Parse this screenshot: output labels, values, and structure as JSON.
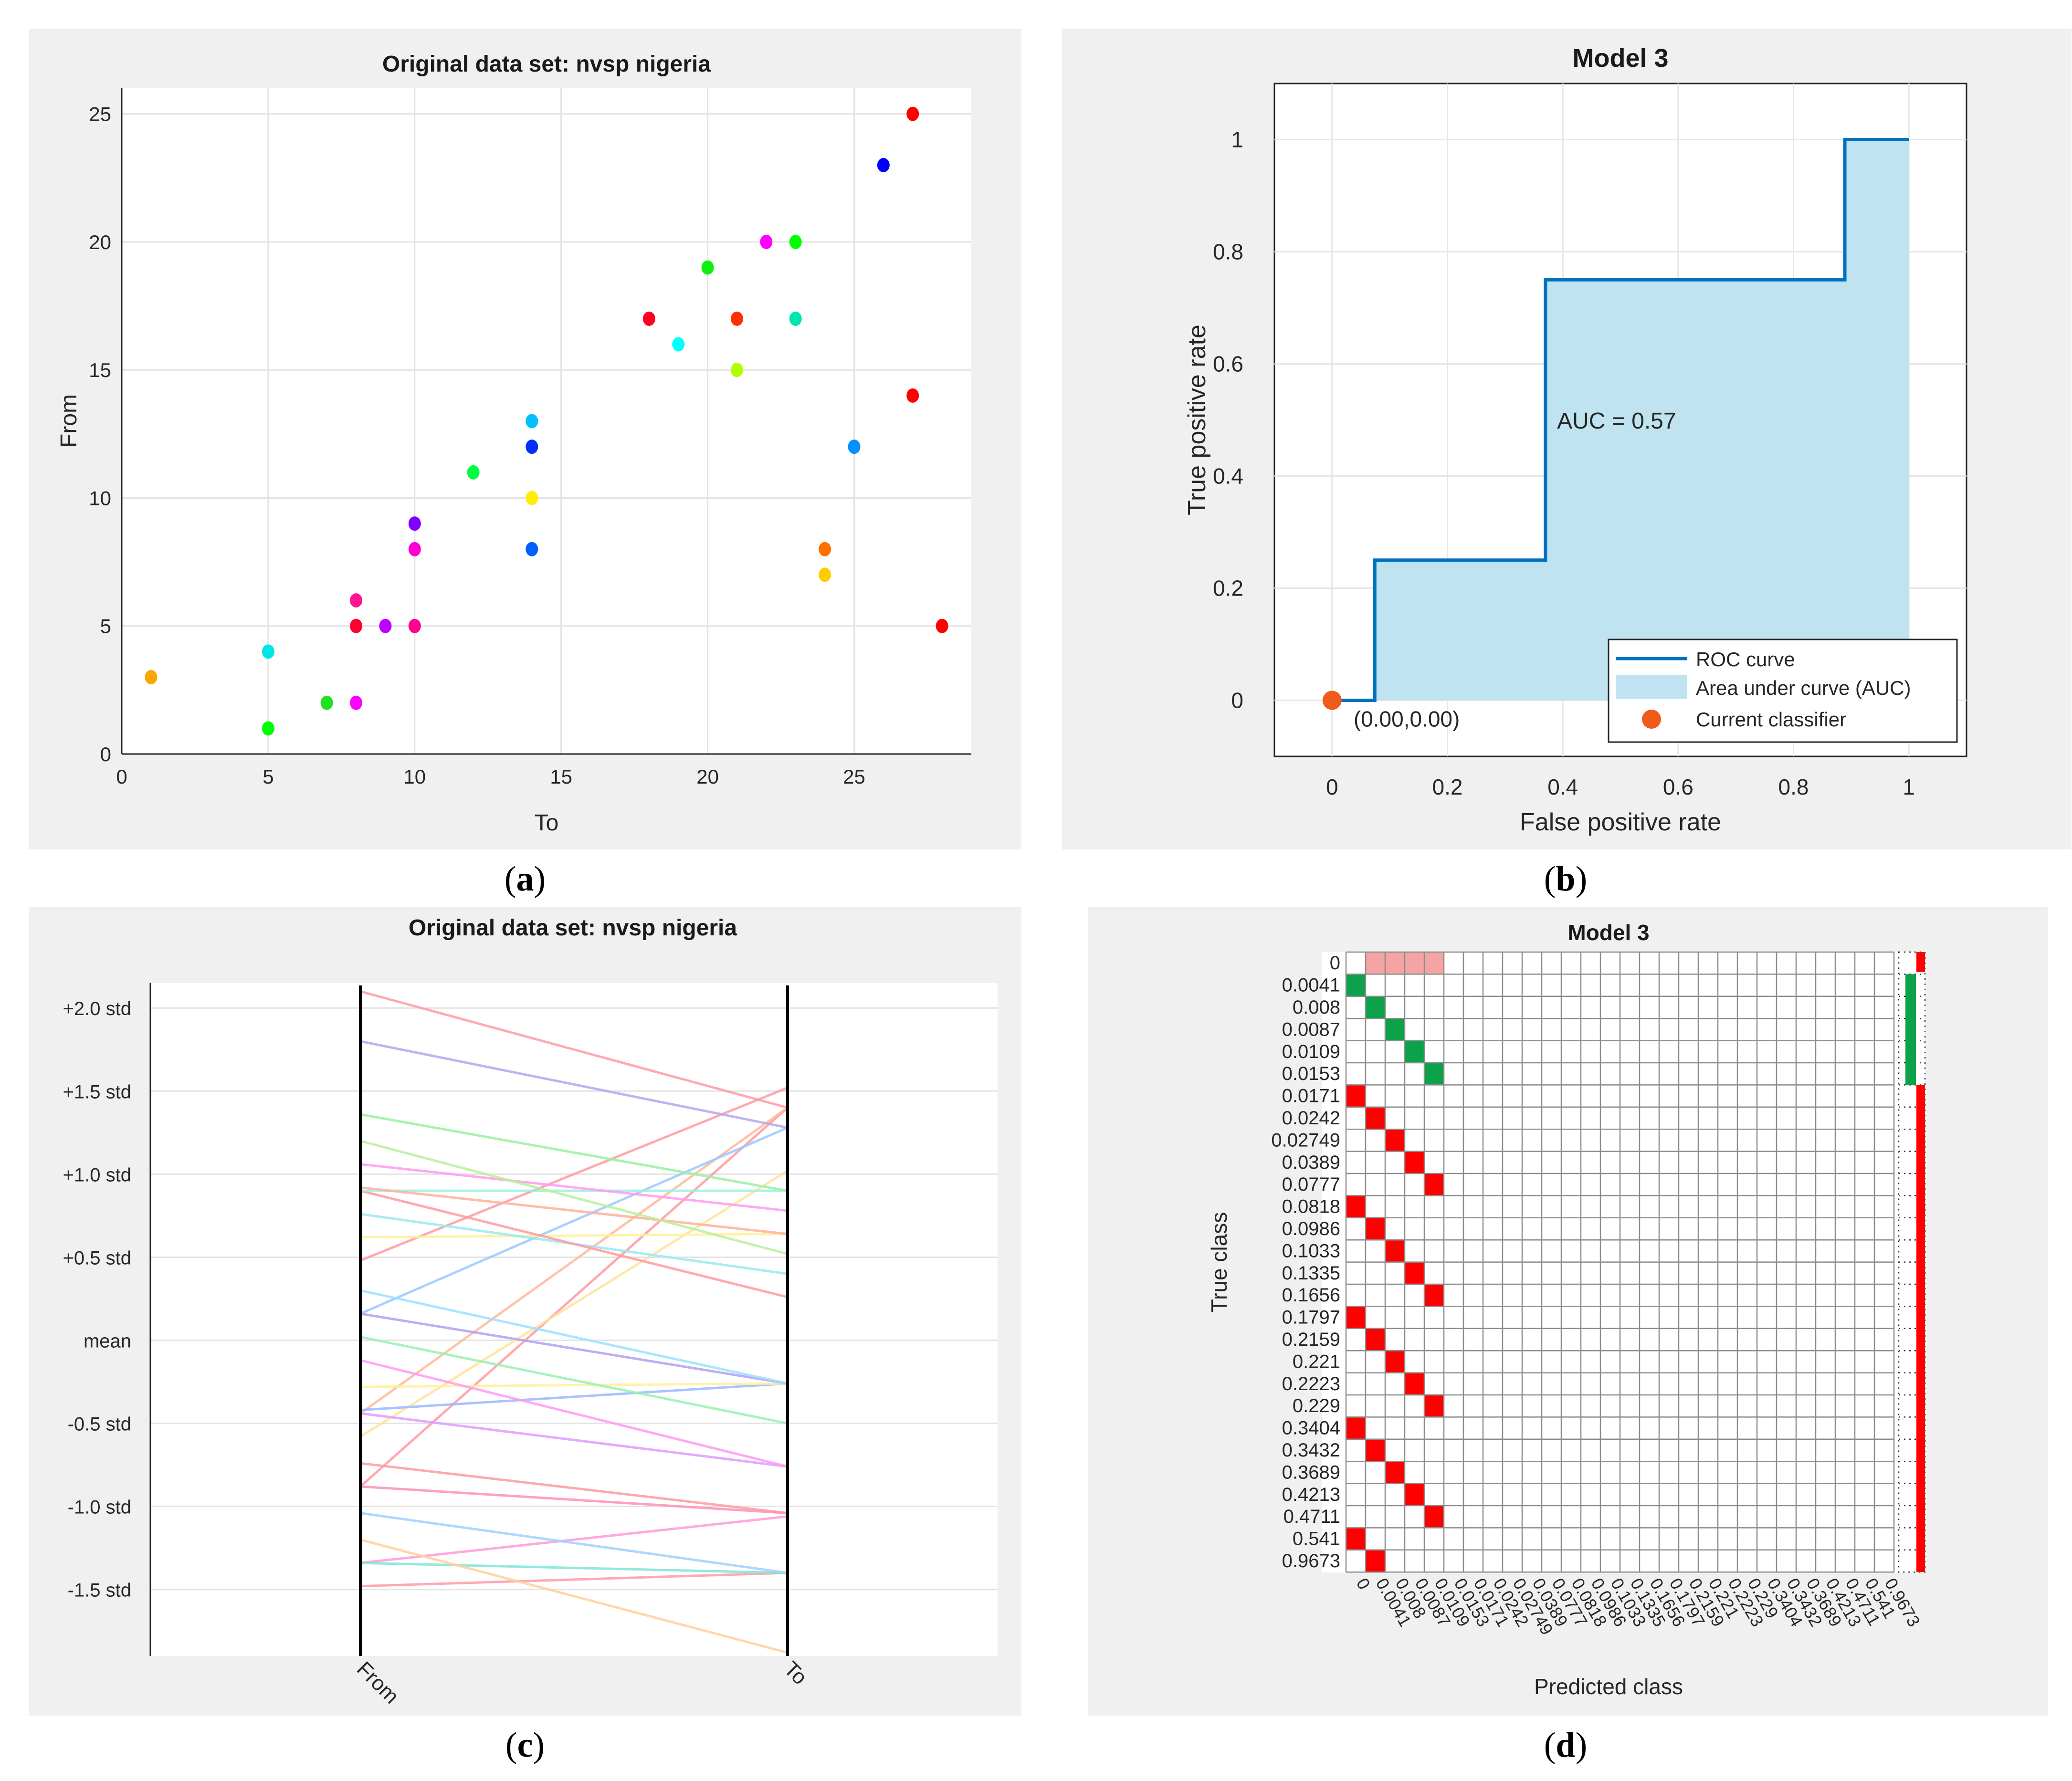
{
  "captions": {
    "a": "a",
    "b": "b",
    "c": "c",
    "d": "d"
  },
  "chart_data": [
    {
      "id": "a",
      "type": "scatter",
      "title": "Original data set: nvsp nigeria",
      "xlabel": "To",
      "ylabel": "From",
      "xlim": [
        0,
        29
      ],
      "ylim": [
        0,
        26
      ],
      "xticks": [
        0,
        5,
        10,
        15,
        20,
        25
      ],
      "yticks": [
        0,
        5,
        10,
        15,
        20,
        25
      ],
      "grid": true,
      "points": [
        {
          "x": 1,
          "y": 3,
          "color": "#ffa500"
        },
        {
          "x": 5,
          "y": 4,
          "color": "#00e5e5"
        },
        {
          "x": 5,
          "y": 1,
          "color": "#00ff00"
        },
        {
          "x": 7,
          "y": 2,
          "color": "#20e020"
        },
        {
          "x": 8,
          "y": 2,
          "color": "#ff00ff"
        },
        {
          "x": 8,
          "y": 5,
          "color": "#ff0030"
        },
        {
          "x": 8,
          "y": 6,
          "color": "#ff1493"
        },
        {
          "x": 9,
          "y": 5,
          "color": "#c000ff"
        },
        {
          "x": 10,
          "y": 5,
          "color": "#ff0090"
        },
        {
          "x": 10,
          "y": 8,
          "color": "#ff00d0"
        },
        {
          "x": 10,
          "y": 9,
          "color": "#8000ff"
        },
        {
          "x": 12,
          "y": 11,
          "color": "#00ff40"
        },
        {
          "x": 14,
          "y": 8,
          "color": "#0060ff"
        },
        {
          "x": 14,
          "y": 10,
          "color": "#ffee00"
        },
        {
          "x": 14,
          "y": 12,
          "color": "#0030ff"
        },
        {
          "x": 14,
          "y": 13,
          "color": "#00c0ff"
        },
        {
          "x": 18,
          "y": 17,
          "color": "#ff0020"
        },
        {
          "x": 19,
          "y": 16,
          "color": "#00ffff"
        },
        {
          "x": 20,
          "y": 19,
          "color": "#10f010"
        },
        {
          "x": 21,
          "y": 17,
          "color": "#ff3000"
        },
        {
          "x": 21,
          "y": 15,
          "color": "#b0ff00"
        },
        {
          "x": 22,
          "y": 20,
          "color": "#ff00ff"
        },
        {
          "x": 23,
          "y": 20,
          "color": "#00ff00"
        },
        {
          "x": 23,
          "y": 17,
          "color": "#00e5b0"
        },
        {
          "x": 24,
          "y": 8,
          "color": "#ff7000"
        },
        {
          "x": 24,
          "y": 7,
          "color": "#ffcc00"
        },
        {
          "x": 25,
          "y": 12,
          "color": "#0090ff"
        },
        {
          "x": 26,
          "y": 23,
          "color": "#0000ff"
        },
        {
          "x": 27,
          "y": 25,
          "color": "#ff0000"
        },
        {
          "x": 27,
          "y": 14,
          "color": "#ff0000"
        },
        {
          "x": 28,
          "y": 5,
          "color": "#ff0000"
        }
      ]
    },
    {
      "id": "b",
      "type": "line",
      "title": "Model 3",
      "xlabel": "False positive rate",
      "ylabel": "True positive rate",
      "xlim": [
        -0.1,
        1.1
      ],
      "ylim": [
        -0.1,
        1.1
      ],
      "xticks": [
        0,
        0.2,
        0.4,
        0.6,
        0.8,
        1
      ],
      "yticks": [
        0,
        0.2,
        0.4,
        0.6,
        0.8,
        1
      ],
      "xticklabels": [
        "0",
        "0.2",
        "0.4",
        "0.6",
        "0.8",
        "1"
      ],
      "yticklabels": [
        "0",
        "0.2",
        "0.4",
        "0.6",
        "0.8",
        "1"
      ],
      "grid": true,
      "roc": {
        "x": [
          0,
          0.074,
          0.074,
          0.37,
          0.37,
          0.889,
          0.889,
          1
        ],
        "y": [
          0,
          0,
          0.25,
          0.25,
          0.75,
          0.75,
          1,
          1
        ]
      },
      "auc_label": "AUC = 0.57",
      "current_classifier": {
        "x": 0,
        "y": 0,
        "label": "(0.00,0.00)"
      },
      "legend": {
        "placement": "bottom-right",
        "entries": [
          "ROC curve",
          "Area under curve (AUC)",
          "Current classifier"
        ]
      },
      "colors": {
        "curve": "#0072bd",
        "area": "#bfe3f1",
        "marker": "#f05a1a"
      }
    },
    {
      "id": "c",
      "type": "line",
      "title": "Original data set: nvsp nigeria",
      "categories": [
        "From",
        "To"
      ],
      "ylim": [
        -1.9,
        2.15
      ],
      "yticks": [
        2.0,
        1.5,
        1.0,
        0.5,
        0,
        -0.5,
        -1.0,
        -1.5
      ],
      "yticklabels": [
        "+2.0 std",
        "+1.5 std",
        "+1.0 std",
        "+0.5 std",
        "mean",
        "-0.5 std",
        "-1.0 std",
        "-1.5 std"
      ],
      "grid": true,
      "lines": [
        {
          "from": -1.48,
          "to": -1.4,
          "color": "#ff9aa8"
        },
        {
          "from": -1.34,
          "to": -1.06,
          "color": "#ff9ad8"
        },
        {
          "from": -1.34,
          "to": -1.4,
          "color": "#7fe5d6"
        },
        {
          "from": -1.2,
          "to": -1.88,
          "color": "#ffd09a"
        },
        {
          "from": -1.04,
          "to": -1.4,
          "color": "#9fd0ff"
        },
        {
          "from": -0.88,
          "to": 1.4,
          "color": "#ff9aa0"
        },
        {
          "from": -0.88,
          "to": -1.04,
          "color": "#ff8fb8"
        },
        {
          "from": -0.74,
          "to": -1.04,
          "color": "#ff9aa0"
        },
        {
          "from": -0.58,
          "to": 1.02,
          "color": "#ffe39a"
        },
        {
          "from": -0.44,
          "to": 1.4,
          "color": "#ffb89a"
        },
        {
          "from": -0.44,
          "to": -0.76,
          "color": "#e09aff"
        },
        {
          "from": -0.42,
          "to": -0.26,
          "color": "#9ab8ff"
        },
        {
          "from": -0.28,
          "to": -0.26,
          "color": "#fff09a"
        },
        {
          "from": -0.12,
          "to": -0.76,
          "color": "#ff9af0"
        },
        {
          "from": 0.02,
          "to": -0.5,
          "color": "#9af0b0"
        },
        {
          "from": 0.16,
          "to": 1.28,
          "color": "#9ac8ff"
        },
        {
          "from": 0.16,
          "to": -0.26,
          "color": "#b0a0f0"
        },
        {
          "from": 0.3,
          "to": -0.26,
          "color": "#9ae0ff"
        },
        {
          "from": 0.48,
          "to": 1.52,
          "color": "#ff9aa0"
        },
        {
          "from": 0.62,
          "to": 0.64,
          "color": "#fff09a"
        },
        {
          "from": 0.76,
          "to": 0.4,
          "color": "#9ae8f0"
        },
        {
          "from": 0.9,
          "to": 0.26,
          "color": "#ff9aa0"
        },
        {
          "from": 0.9,
          "to": 0.9,
          "color": "#9af0e0"
        },
        {
          "from": 0.92,
          "to": 0.64,
          "color": "#ffb09a"
        },
        {
          "from": 1.06,
          "to": 0.78,
          "color": "#ff9af0"
        },
        {
          "from": 1.2,
          "to": 0.52,
          "color": "#b8f09a"
        },
        {
          "from": 1.36,
          "to": 0.9,
          "color": "#9af0a0"
        },
        {
          "from": 1.8,
          "to": 1.28,
          "color": "#b0a8f0"
        },
        {
          "from": 2.1,
          "to": 1.4,
          "color": "#ff9aa8"
        }
      ]
    },
    {
      "id": "d",
      "type": "heatmap",
      "title": "Model 3",
      "xlabel": "Predicted class",
      "ylabel": "True class",
      "classes": [
        "0",
        "0.0041",
        "0.008",
        "0.0087",
        "0.0109",
        "0.0153",
        "0.0171",
        "0.0242",
        "0.02749",
        "0.0389",
        "0.0777",
        "0.0818",
        "0.0986",
        "0.1033",
        "0.1335",
        "0.1656",
        "0.1797",
        "0.2159",
        "0.221",
        "0.2223",
        "0.229",
        "0.3404",
        "0.3432",
        "0.3689",
        "0.4213",
        "0.4711",
        "0.541",
        "0.9673"
      ],
      "predicted_index": [
        null,
        0,
        1,
        2,
        3,
        4,
        0,
        1,
        2,
        3,
        4,
        0,
        1,
        2,
        3,
        4,
        0,
        1,
        2,
        3,
        4,
        0,
        1,
        2,
        3,
        4,
        0,
        1
      ],
      "first_row_pink_cols": [
        1,
        2,
        3,
        4
      ],
      "true_class_summary": {
        "correct_rows": [
          1,
          2,
          3,
          4,
          5
        ]
      },
      "colors": {
        "correct": "#0ba24a",
        "incorrect": "#ff0000",
        "light_incorrect": "#f5a3a3",
        "grid": "#8c8c8c"
      }
    }
  ]
}
